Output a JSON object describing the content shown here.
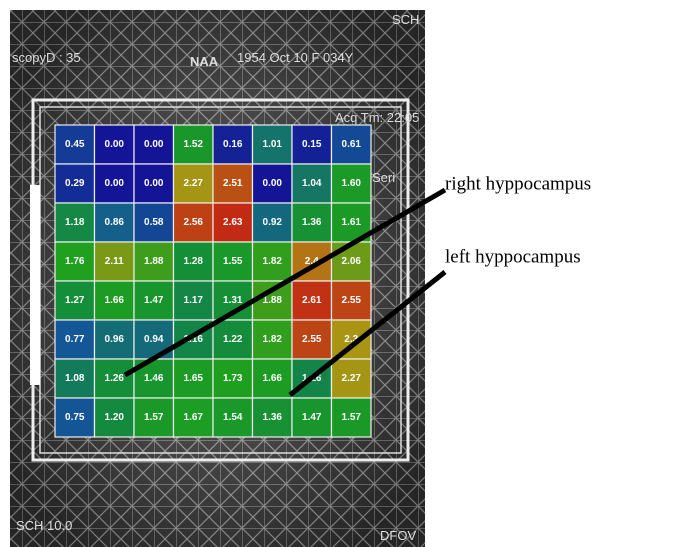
{
  "header": {
    "left": "scopyD : 35",
    "metabolite": "NAA",
    "patient": "1954 Oct 10 F 034Y",
    "acq": "Acq Tm: 22:05",
    "series": "Seri",
    "top_right": "SCH",
    "bottom_left": "SCH 10.0",
    "bottom_right": "DFOV"
  },
  "grid": {
    "rows": [
      [
        "0.45",
        "0.00",
        "0.00",
        "1.52",
        "0.16",
        "1.01",
        "0.15",
        "0.61"
      ],
      [
        "0.29",
        "0.00",
        "0.00",
        "2.27",
        "2.51",
        "0.00",
        "1.04",
        "1.60"
      ],
      [
        "1.18",
        "0.86",
        "0.58",
        "2.56",
        "2.63",
        "0.92",
        "1.36",
        "1.61"
      ],
      [
        "1.76",
        "2.11",
        "1.88",
        "1.28",
        "1.55",
        "1.82",
        "2.4",
        "2.06"
      ],
      [
        "1.27",
        "1.66",
        "1.47",
        "1.17",
        "1.31",
        "1.88",
        "2.61",
        "2.55"
      ],
      [
        "0.77",
        "0.96",
        "0.94",
        "1.16",
        "1.22",
        "1.82",
        "2.55",
        "2.3"
      ],
      [
        "1.08",
        "1.26",
        "1.46",
        "1.65",
        "1.73",
        "1.66",
        "1.16",
        "2.27"
      ],
      [
        "0.75",
        "1.20",
        "1.57",
        "1.67",
        "1.54",
        "1.36",
        "1.47",
        "1.57"
      ]
    ]
  },
  "annotations": {
    "right": "right hyppocampus",
    "left": "left hyppocampus"
  }
}
